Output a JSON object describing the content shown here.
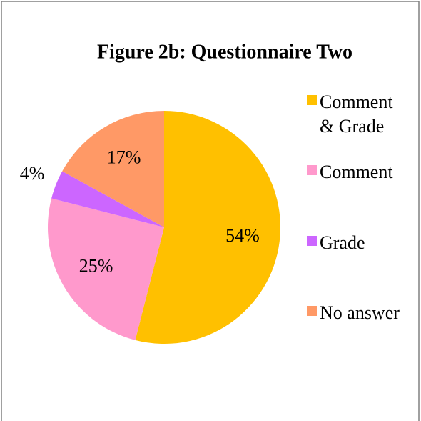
{
  "chart_data": {
    "type": "pie",
    "title": "Figure 2b: Questionnaire Two",
    "categories": [
      "Comment & Grade",
      "Comment",
      "Grade",
      "No answer"
    ],
    "values": [
      54,
      25,
      4,
      17
    ],
    "value_labels": [
      "54%",
      "25%",
      "4%",
      "17%"
    ],
    "colors": [
      "#FFC000",
      "#FF99CC",
      "#CC66FF",
      "#FF9966"
    ],
    "legend": "right"
  }
}
